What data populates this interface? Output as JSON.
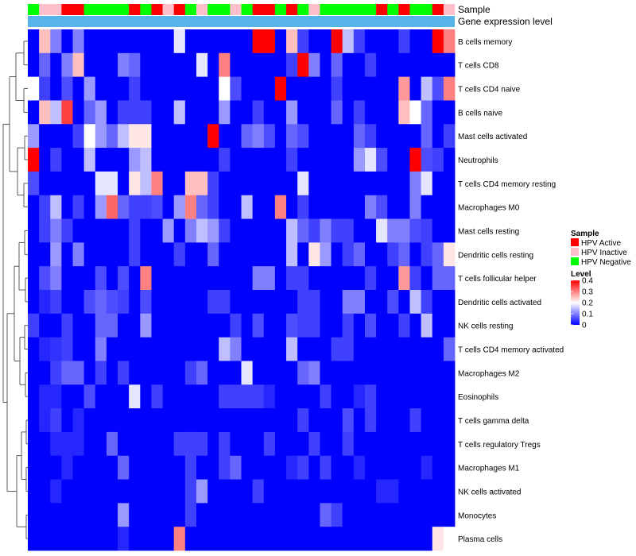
{
  "chart_data": {
    "type": "heatmap",
    "title": "",
    "annotation_tracks": [
      "Sample",
      "Gene expression level"
    ],
    "rows": [
      "B cells memory",
      "T cells CD8",
      "T cells CD4 naive",
      "B cells naive",
      "Mast cells activated",
      "Neutrophils",
      "T cells CD4 memory resting",
      "Macrophages M0",
      "Mast cells resting",
      "Dendritic cells resting",
      "T cells follicular helper",
      "Dendritic cells activated",
      "NK cells resting",
      "T cells CD4 memory activated",
      "Macrophages M2",
      "Eosinophils",
      "T cells gamma delta",
      "T cells regulatory  Tregs",
      "Macrophages M1",
      "NK cells activated",
      "Monocytes",
      "Plasma cells"
    ],
    "sample_groups": [
      "N",
      "I",
      "I",
      "A",
      "A",
      "N",
      "N",
      "N",
      "N",
      "A",
      "N",
      "A",
      "I",
      "A",
      "N",
      "I",
      "N",
      "N",
      "I",
      "N",
      "A",
      "A",
      "N",
      "A",
      "N",
      "I",
      "N",
      "N",
      "N",
      "N",
      "N",
      "A",
      "N",
      "A",
      "N",
      "N",
      "A",
      "I"
    ],
    "sample_legend": {
      "title": "Sample",
      "entries": [
        {
          "key": "A",
          "label": "HPV Active",
          "color": "#ff0000"
        },
        {
          "key": "I",
          "label": "HPV Inactive",
          "color": "#ffc0cb"
        },
        {
          "key": "N",
          "label": "HPV Negative",
          "color": "#00ff00"
        }
      ]
    },
    "level_legend": {
      "title": "Level",
      "ticks": [
        0.4,
        0.3,
        0.2,
        0.1,
        0
      ],
      "range": [
        0,
        0.4
      ],
      "colors": [
        "#0000ff",
        "#ffffff",
        "#ff0000"
      ]
    },
    "values": [
      [
        0.0,
        0.25,
        0.1,
        0.0,
        0.1,
        0.0,
        0.0,
        0.0,
        0.0,
        0.0,
        0.0,
        0.0,
        0.0,
        0.18,
        0.0,
        0.0,
        0.0,
        0.0,
        0.0,
        0.0,
        0.4,
        0.4,
        0.0,
        0.25,
        0.05,
        0.0,
        0.0,
        0.4,
        0.15,
        0.05,
        0.0,
        0.0,
        0.0,
        0.05,
        0.0,
        0.0,
        0.4,
        0.3
      ],
      [
        0.0,
        0.08,
        0.0,
        0.1,
        0.25,
        0.0,
        0.0,
        0.0,
        0.1,
        0.08,
        0.0,
        0.0,
        0.0,
        0.0,
        0.0,
        0.18,
        0.0,
        0.3,
        0.0,
        0.0,
        0.0,
        0.0,
        0.0,
        0.05,
        0.4,
        0.1,
        0.0,
        0.08,
        0.0,
        0.0,
        0.05,
        0.0,
        0.0,
        0.0,
        0.0,
        0.0,
        0.0,
        0.0
      ],
      [
        0.2,
        0.05,
        0.0,
        0.06,
        0.0,
        0.12,
        0.0,
        0.0,
        0.0,
        0.05,
        0.0,
        0.0,
        0.0,
        0.0,
        0.0,
        0.0,
        0.0,
        0.2,
        0.06,
        0.0,
        0.0,
        0.0,
        0.4,
        0.0,
        0.0,
        0.0,
        0.0,
        0.05,
        0.0,
        0.0,
        0.0,
        0.0,
        0.0,
        0.28,
        0.0,
        0.15,
        0.06,
        0.3
      ],
      [
        0.0,
        0.25,
        0.15,
        0.35,
        0.0,
        0.08,
        0.12,
        0.0,
        0.05,
        0.05,
        0.05,
        0.0,
        0.0,
        0.15,
        0.0,
        0.0,
        0.0,
        0.12,
        0.0,
        0.0,
        0.05,
        0.0,
        0.0,
        0.12,
        0.0,
        0.0,
        0.0,
        0.08,
        0.0,
        0.05,
        0.0,
        0.0,
        0.0,
        0.25,
        0.2,
        0.08,
        0.0,
        0.0
      ],
      [
        0.12,
        0.0,
        0.0,
        0.0,
        0.05,
        0.2,
        0.12,
        0.08,
        0.15,
        0.22,
        0.22,
        0.0,
        0.0,
        0.0,
        0.0,
        0.0,
        0.4,
        0.0,
        0.0,
        0.08,
        0.1,
        0.06,
        0.0,
        0.08,
        0.06,
        0.0,
        0.0,
        0.0,
        0.0,
        0.08,
        0.05,
        0.0,
        0.0,
        0.0,
        0.0,
        0.08,
        0.0,
        0.05
      ],
      [
        0.4,
        0.0,
        0.05,
        0.0,
        0.0,
        0.15,
        0.0,
        0.0,
        0.0,
        0.12,
        0.15,
        0.0,
        0.0,
        0.0,
        0.0,
        0.0,
        0.0,
        0.05,
        0.0,
        0.0,
        0.0,
        0.0,
        0.0,
        0.05,
        0.0,
        0.0,
        0.0,
        0.0,
        0.0,
        0.12,
        0.18,
        0.06,
        0.0,
        0.0,
        0.4,
        0.06,
        0.05,
        0.0
      ],
      [
        0.06,
        0.0,
        0.0,
        0.0,
        0.0,
        0.0,
        0.18,
        0.18,
        0.0,
        0.22,
        0.15,
        0.3,
        0.0,
        0.0,
        0.25,
        0.25,
        0.05,
        0.0,
        0.0,
        0.0,
        0.0,
        0.0,
        0.0,
        0.0,
        0.18,
        0.0,
        0.0,
        0.0,
        0.0,
        0.0,
        0.0,
        0.0,
        0.0,
        0.0,
        0.1,
        0.18,
        0.0,
        0.0
      ],
      [
        0.0,
        0.05,
        0.15,
        0.0,
        0.05,
        0.0,
        0.12,
        0.32,
        0.08,
        0.05,
        0.05,
        0.06,
        0.0,
        0.12,
        0.3,
        0.08,
        0.05,
        0.0,
        0.0,
        0.15,
        0.0,
        0.0,
        0.3,
        0.0,
        0.05,
        0.0,
        0.0,
        0.0,
        0.0,
        0.0,
        0.1,
        0.06,
        0.0,
        0.0,
        0.1,
        0.0,
        0.0,
        0.0
      ],
      [
        0.0,
        0.05,
        0.1,
        0.05,
        0.0,
        0.0,
        0.0,
        0.0,
        0.0,
        0.05,
        0.0,
        0.0,
        0.12,
        0.0,
        0.1,
        0.15,
        0.12,
        0.05,
        0.0,
        0.0,
        0.0,
        0.0,
        0.0,
        0.15,
        0.08,
        0.05,
        0.1,
        0.05,
        0.05,
        0.0,
        0.0,
        0.18,
        0.1,
        0.1,
        0.06,
        0.05,
        0.0,
        0.0
      ],
      [
        0.0,
        0.0,
        0.12,
        0.0,
        0.1,
        0.0,
        0.0,
        0.0,
        0.0,
        0.05,
        0.0,
        0.0,
        0.0,
        0.05,
        0.0,
        0.0,
        0.08,
        0.0,
        0.0,
        0.0,
        0.0,
        0.0,
        0.0,
        0.15,
        0.0,
        0.22,
        0.12,
        0.0,
        0.05,
        0.08,
        0.0,
        0.0,
        0.05,
        0.08,
        0.0,
        0.05,
        0.08,
        0.22
      ],
      [
        0.0,
        0.06,
        0.1,
        0.0,
        0.0,
        0.0,
        0.06,
        0.0,
        0.06,
        0.0,
        0.3,
        0.0,
        0.0,
        0.0,
        0.0,
        0.0,
        0.0,
        0.0,
        0.0,
        0.0,
        0.1,
        0.1,
        0.0,
        0.05,
        0.05,
        0.0,
        0.0,
        0.0,
        0.0,
        0.0,
        0.05,
        0.0,
        0.0,
        0.28,
        0.05,
        0.0,
        0.08,
        0.08
      ],
      [
        0.0,
        0.03,
        0.05,
        0.0,
        0.0,
        0.06,
        0.08,
        0.06,
        0.05,
        0.0,
        0.06,
        0.0,
        0.0,
        0.0,
        0.0,
        0.0,
        0.05,
        0.05,
        0.0,
        0.0,
        0.0,
        0.0,
        0.0,
        0.0,
        0.05,
        0.05,
        0.0,
        0.0,
        0.1,
        0.1,
        0.0,
        0.0,
        0.06,
        0.0,
        0.15,
        0.05,
        0.0,
        0.0
      ],
      [
        0.05,
        0.0,
        0.0,
        0.05,
        0.0,
        0.0,
        0.08,
        0.08,
        0.0,
        0.0,
        0.12,
        0.0,
        0.0,
        0.0,
        0.0,
        0.0,
        0.0,
        0.0,
        0.05,
        0.0,
        0.06,
        0.0,
        0.0,
        0.06,
        0.05,
        0.05,
        0.0,
        0.0,
        0.05,
        0.0,
        0.06,
        0.0,
        0.0,
        0.05,
        0.0,
        0.15,
        0.0,
        0.0
      ],
      [
        0.0,
        0.03,
        0.04,
        0.05,
        0.0,
        0.0,
        0.1,
        0.0,
        0.0,
        0.0,
        0.0,
        0.0,
        0.0,
        0.0,
        0.0,
        0.0,
        0.0,
        0.15,
        0.1,
        0.0,
        0.0,
        0.0,
        0.0,
        0.15,
        0.0,
        0.0,
        0.0,
        0.05,
        0.05,
        0.0,
        0.0,
        0.0,
        0.0,
        0.0,
        0.0,
        0.0,
        0.0,
        0.08
      ],
      [
        0.0,
        0.0,
        0.05,
        0.08,
        0.08,
        0.0,
        0.05,
        0.0,
        0.05,
        0.0,
        0.0,
        0.0,
        0.0,
        0.0,
        0.05,
        0.08,
        0.0,
        0.0,
        0.0,
        0.18,
        0.0,
        0.0,
        0.0,
        0.0,
        0.08,
        0.1,
        0.0,
        0.0,
        0.0,
        0.0,
        0.0,
        0.0,
        0.0,
        0.0,
        0.0,
        0.0,
        0.0,
        0.0
      ],
      [
        0.0,
        0.03,
        0.03,
        0.0,
        0.0,
        0.06,
        0.0,
        0.0,
        0.0,
        0.18,
        0.0,
        0.05,
        0.0,
        0.0,
        0.0,
        0.0,
        0.0,
        0.05,
        0.05,
        0.05,
        0.05,
        0.03,
        0.0,
        0.0,
        0.0,
        0.0,
        0.05,
        0.0,
        0.0,
        0.03,
        0.05,
        0.0,
        0.0,
        0.0,
        0.0,
        0.0,
        0.0,
        0.0
      ],
      [
        0.0,
        0.03,
        0.05,
        0.0,
        0.03,
        0.0,
        0.0,
        0.0,
        0.0,
        0.0,
        0.0,
        0.0,
        0.0,
        0.0,
        0.0,
        0.0,
        0.0,
        0.0,
        0.0,
        0.0,
        0.0,
        0.0,
        0.0,
        0.0,
        0.05,
        0.0,
        0.0,
        0.0,
        0.06,
        0.0,
        0.05,
        0.0,
        0.0,
        0.0,
        0.05,
        0.0,
        0.0,
        0.0
      ],
      [
        0.0,
        0.0,
        0.03,
        0.03,
        0.03,
        0.0,
        0.0,
        0.08,
        0.0,
        0.0,
        0.0,
        0.0,
        0.0,
        0.05,
        0.05,
        0.05,
        0.0,
        0.05,
        0.0,
        0.0,
        0.0,
        0.05,
        0.0,
        0.0,
        0.0,
        0.05,
        0.0,
        0.0,
        0.05,
        0.0,
        0.0,
        0.0,
        0.0,
        0.0,
        0.0,
        0.0,
        0.0,
        0.0
      ],
      [
        0.0,
        0.0,
        0.0,
        0.03,
        0.0,
        0.0,
        0.0,
        0.0,
        0.08,
        0.0,
        0.0,
        0.0,
        0.0,
        0.0,
        0.05,
        0.0,
        0.0,
        0.05,
        0.08,
        0.0,
        0.0,
        0.0,
        0.0,
        0.03,
        0.05,
        0.0,
        0.05,
        0.0,
        0.0,
        0.03,
        0.0,
        0.0,
        0.0,
        0.0,
        0.0,
        0.03,
        0.0,
        0.0
      ],
      [
        0.0,
        0.0,
        0.03,
        0.0,
        0.0,
        0.0,
        0.0,
        0.0,
        0.0,
        0.0,
        0.0,
        0.0,
        0.0,
        0.0,
        0.05,
        0.12,
        0.0,
        0.0,
        0.0,
        0.0,
        0.05,
        0.0,
        0.0,
        0.0,
        0.0,
        0.0,
        0.0,
        0.0,
        0.0,
        0.0,
        0.0,
        0.03,
        0.03,
        0.0,
        0.0,
        0.0,
        0.0,
        0.0
      ],
      [
        0.0,
        0.0,
        0.0,
        0.0,
        0.0,
        0.0,
        0.0,
        0.0,
        0.12,
        0.0,
        0.0,
        0.0,
        0.0,
        0.0,
        0.05,
        0.0,
        0.0,
        0.0,
        0.0,
        0.0,
        0.0,
        0.0,
        0.0,
        0.0,
        0.0,
        0.0,
        0.08,
        0.05,
        0.0,
        0.0,
        0.0,
        0.0,
        0.0,
        0.0,
        0.0,
        0.0,
        0.0,
        0.0
      ],
      [
        0.0,
        0.0,
        0.0,
        0.0,
        0.0,
        0.0,
        0.0,
        0.0,
        0.03,
        0.0,
        0.0,
        0.0,
        0.0,
        0.3,
        0.0,
        0.0,
        0.0,
        0.0,
        0.0,
        0.0,
        0.0,
        0.0,
        0.0,
        0.0,
        0.0,
        0.0,
        0.0,
        0.0,
        0.0,
        0.0,
        0.0,
        0.0,
        0.0,
        0.0,
        0.0,
        0.0,
        0.22,
        0.2
      ]
    ]
  }
}
